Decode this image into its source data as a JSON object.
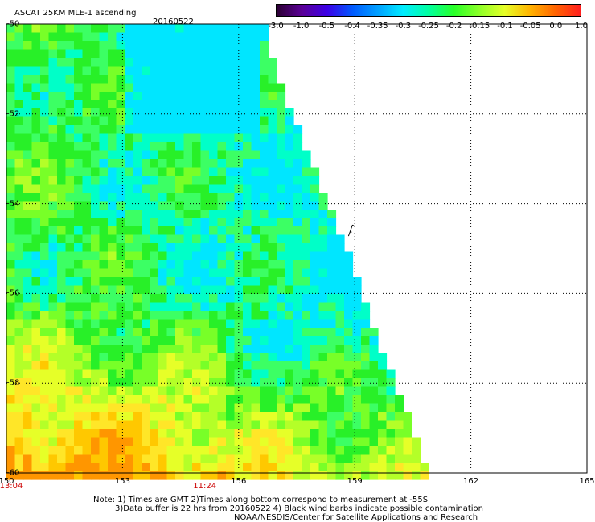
{
  "title": "ASCAT 25KM MLE-1 ascending",
  "date": "20160522",
  "colorbar": {
    "labels": [
      "-3.0",
      "-1.0",
      "-0.5",
      "-0.4",
      "-0.35",
      "-0.3",
      "-0.25",
      "-0.2",
      "-0.15",
      "-0.1",
      "-0.05",
      "0.0",
      "1.0"
    ],
    "colors": [
      "#2b0032",
      "#5a0096",
      "#3c00e6",
      "#005aff",
      "#00a0ff",
      "#00ecff",
      "#00ffa0",
      "#28ff28",
      "#8cff28",
      "#e6ff28",
      "#ffb400",
      "#ff6400",
      "#ff1e1e"
    ]
  },
  "map": {
    "lon_range": [
      150,
      165
    ],
    "lat_range": [
      -60,
      -50
    ],
    "x_ticks": [
      "150",
      "153",
      "156",
      "159",
      "162",
      "165"
    ],
    "y_ticks": [
      "-50",
      "-52",
      "-54",
      "-56",
      "-58",
      "-60"
    ],
    "times": [
      {
        "lon": 150,
        "text": "13:04"
      },
      {
        "lon": 155,
        "text": "11:24"
      }
    ],
    "swath_edge": [
      {
        "lat": -50.6,
        "lon": 156.7
      },
      {
        "lat": -52.0,
        "lon": 157.3
      },
      {
        "lat": -53.5,
        "lon": 158.0
      },
      {
        "lat": -55.0,
        "lon": 158.7
      },
      {
        "lat": -56.5,
        "lon": 159.3
      },
      {
        "lat": -58.0,
        "lon": 160.0
      },
      {
        "lat": -59.5,
        "lon": 160.6
      },
      {
        "lat": -60.0,
        "lon": 160.8
      }
    ],
    "contamination_barb": {
      "lat": -54.6,
      "lon": 158.9
    }
  },
  "notes": {
    "line1": "Note: 1) Times are GMT 2)Times along bottom correspond to measurement at -55S",
    "line2": "3)Data buffer is 22 hrs from 20160522 4) Black wind barbs indicate possible contamination",
    "line3": "NOAA/NESDIS/Center for Satellite Applications and Research"
  }
}
